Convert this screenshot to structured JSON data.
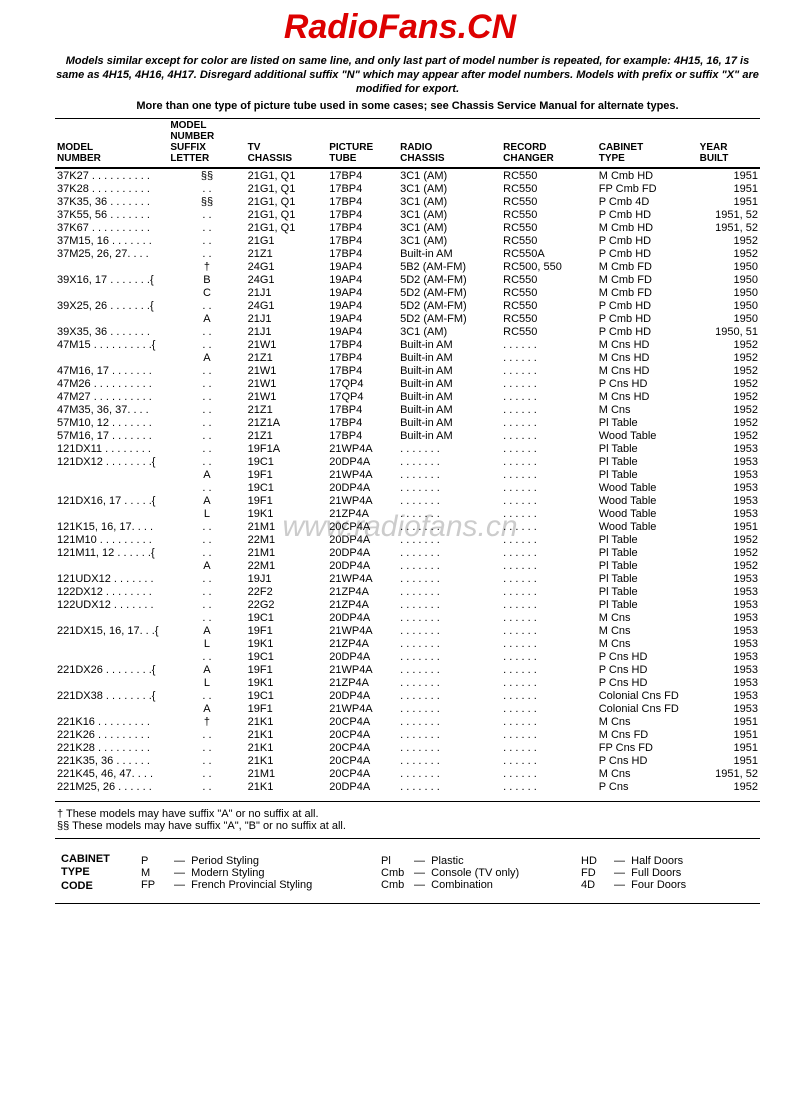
{
  "watermark": {
    "top": "RadioFans.CN",
    "mid": "www.radiofans.cn"
  },
  "intro": "Models similar except for color are listed on same line, and only last part of model number is repeated, for example: 4H15, 16, 17 is same as 4H15, 4H16, 4H17. Disregard additional suffix \"N\" which may appear after model numbers. Models with prefix or suffix \"X\" are modified for export.",
  "intro2": "More than one type of picture tube used in some cases; see Chassis Service Manual for alternate types.",
  "headers": [
    "MODEL\nNUMBER",
    "MODEL NUMBER\nSUFFIX LETTER",
    "TV\nCHASSIS",
    "PICTURE\nTUBE",
    "RADIO\nCHASSIS",
    "RECORD\nCHANGER",
    "CABINET\nTYPE",
    "YEAR\nBUILT"
  ],
  "rows": [
    [
      "37K27 . . . . . . . . . .",
      "§§",
      "21G1, Q1",
      "17BP4",
      "3C1 (AM)",
      "RC550",
      "M Cmb HD",
      "1951",
      "sect"
    ],
    [
      "37K28 . . . . . . . . . .",
      ". .",
      "21G1, Q1",
      "17BP4",
      "3C1 (AM)",
      "RC550",
      "FP Cmb FD",
      "1951",
      ""
    ],
    [
      "37K35, 36 . . . . . . .",
      "§§",
      "21G1, Q1",
      "17BP4",
      "3C1 (AM)",
      "RC550",
      "P Cmb 4D",
      "1951",
      ""
    ],
    [
      "37K55, 56 . . . . . . .",
      ". .",
      "21G1, Q1",
      "17BP4",
      "3C1 (AM)",
      "RC550",
      "P Cmb HD",
      "1951, 52",
      ""
    ],
    [
      "37K67 . . . . . . . . . .",
      ". .",
      "21G1, Q1",
      "17BP4",
      "3C1 (AM)",
      "RC550",
      "M Cmb HD",
      "1951, 52",
      ""
    ],
    [
      "37M15, 16 . . . . . . .",
      ". .",
      "21G1",
      "17BP4",
      "3C1 (AM)",
      "RC550",
      "P Cmb HD",
      "1952",
      ""
    ],
    [
      "37M25, 26, 27. . . .",
      ". .",
      "21Z1",
      "17BP4",
      "Built-in AM",
      "RC550A",
      "P Cmb HD",
      "1952",
      ""
    ],
    [
      "",
      "†",
      "24G1",
      "19AP4",
      "5B2 (AM-FM)",
      "RC500, 550",
      "M Cmb FD",
      "1950",
      "gap"
    ],
    [
      "39X16, 17 . . . . . . .{",
      "B",
      "24G1",
      "19AP4",
      "5D2 (AM-FM)",
      "RC550",
      "M Cmb FD",
      "1950",
      ""
    ],
    [
      "",
      "C",
      "21J1",
      "19AP4",
      "5D2 (AM-FM)",
      "RC550",
      "M Cmb FD",
      "1950",
      ""
    ],
    [
      "39X25, 26 . . . . . . .{",
      ". .",
      "24G1",
      "19AP4",
      "5D2 (AM-FM)",
      "RC550",
      "P Cmb HD",
      "1950",
      "gap"
    ],
    [
      "",
      "A",
      "21J1",
      "19AP4",
      "5D2 (AM-FM)",
      "RC550",
      "P Cmb HD",
      "1950",
      ""
    ],
    [
      "39X35, 36 . . . . . . .",
      ". .",
      "21J1",
      "19AP4",
      "3C1 (AM)",
      "RC550",
      "P Cmb HD",
      "1950, 51",
      "gap"
    ],
    [
      "47M15 . . . . . . . . . .{",
      ". .",
      "21W1",
      "17BP4",
      "Built-in AM",
      ". . . . . .",
      "M Cns HD",
      "1952",
      "gap"
    ],
    [
      "",
      "A",
      "21Z1",
      "17BP4",
      "Built-in AM",
      ". . . . . .",
      "M Cns HD",
      "1952",
      ""
    ],
    [
      "47M16, 17 . . . . . . .",
      ". .",
      "21W1",
      "17BP4",
      "Built-in AM",
      ". . . . . .",
      "M Cns HD",
      "1952",
      ""
    ],
    [
      "47M26 . . . . . . . . . .",
      ". .",
      "21W1",
      "17QP4",
      "Built-in AM",
      ". . . . . .",
      "P Cns HD",
      "1952",
      ""
    ],
    [
      "47M27 . . . . . . . . . .",
      ". .",
      "21W1",
      "17QP4",
      "Built-in AM",
      ". . . . . .",
      "M Cns HD",
      "1952",
      ""
    ],
    [
      "47M35, 36, 37. . . .",
      ". .",
      "21Z1",
      "17BP4",
      "Built-in AM",
      ". . . . . .",
      "M Cns",
      "1952",
      ""
    ],
    [
      "57M10, 12 . . . . . . .",
      ". .",
      "21Z1A",
      "17BP4",
      "Built-in AM",
      ". . . . . .",
      "Pl Table",
      "1952",
      "gap"
    ],
    [
      "57M16, 17 . . . . . . .",
      ". .",
      "21Z1",
      "17BP4",
      "Built-in AM",
      ". . . . . .",
      "Wood Table",
      "1952",
      ""
    ],
    [
      "121DX11 . . . . . . . .",
      ". .",
      "19F1A",
      "21WP4A",
      ". . . . . . .",
      ". . . . . .",
      "Pl Table",
      "1953",
      "gap"
    ],
    [
      "121DX12 . . . . . . . .{",
      ". .",
      "19C1",
      "20DP4A",
      ". . . . . . .",
      ". . . . . .",
      "Pl Table",
      "1953",
      ""
    ],
    [
      "",
      "A",
      "19F1",
      "21WP4A",
      ". . . . . . .",
      ". . . . . .",
      "Pl Table",
      "1953",
      ""
    ],
    [
      "",
      ". .",
      "19C1",
      "20DP4A",
      ". . . . . . .",
      ". . . . . .",
      "Wood Table",
      "1953",
      "gap"
    ],
    [
      "121DX16, 17 . . . . .{",
      "A",
      "19F1",
      "21WP4A",
      ". . . . . . .",
      ". . . . . .",
      "Wood Table",
      "1953",
      ""
    ],
    [
      "",
      "L",
      "19K1",
      "21ZP4A",
      ". . . . . . .",
      ". . . . . .",
      "Wood Table",
      "1953",
      ""
    ],
    [
      "121K15, 16, 17. . . .",
      ". .",
      "21M1",
      "20CP4A",
      ". . . . . . .",
      ". . . . . .",
      "Wood Table",
      "1951",
      ""
    ],
    [
      "121M10 . . . . . . . . .",
      ". .",
      "22M1",
      "20DP4A",
      ". . . . . . .",
      ". . . . . .",
      "Pl Table",
      "1952",
      ""
    ],
    [
      "121M11, 12 . . . . . .{",
      ". .",
      "21M1",
      "20DP4A",
      ". . . . . . .",
      ". . . . . .",
      "Pl Table",
      "1952",
      "gap"
    ],
    [
      "",
      "A",
      "22M1",
      "20DP4A",
      ". . . . . . .",
      ". . . . . .",
      "Pl Table",
      "1952",
      ""
    ],
    [
      "121UDX12 . . . . . . .",
      ". .",
      "19J1",
      "21WP4A",
      ". . . . . . .",
      ". . . . . .",
      "Pl Table",
      "1953",
      ""
    ],
    [
      "122DX12 . . . . . . . .",
      ". .",
      "22F2",
      "21ZP4A",
      ". . . . . . .",
      ". . . . . .",
      "Pl Table",
      "1953",
      ""
    ],
    [
      "122UDX12 . . . . . . .",
      ". .",
      "22G2",
      "21ZP4A",
      ". . . . . . .",
      ". . . . . .",
      "Pl Table",
      "1953",
      ""
    ],
    [
      "",
      ". .",
      "19C1",
      "20DP4A",
      ". . . . . . .",
      ". . . . . .",
      "M Cns",
      "1953",
      "gap"
    ],
    [
      "221DX15, 16, 17. . .{",
      "A",
      "19F1",
      "21WP4A",
      ". . . . . . .",
      ". . . . . .",
      "M Cns",
      "1953",
      ""
    ],
    [
      "",
      "L",
      "19K1",
      "21ZP4A",
      ". . . . . . .",
      ". . . . . .",
      "M Cns",
      "1953",
      ""
    ],
    [
      "",
      ". .",
      "19C1",
      "20DP4A",
      ". . . . . . .",
      ". . . . . .",
      "P Cns HD",
      "1953",
      "gap"
    ],
    [
      "221DX26 . . . . . . . .{",
      "A",
      "19F1",
      "21WP4A",
      ". . . . . . .",
      ". . . . . .",
      "P Cns HD",
      "1953",
      ""
    ],
    [
      "",
      "L",
      "19K1",
      "21ZP4A",
      ". . . . . . .",
      ". . . . . .",
      "P Cns HD",
      "1953",
      ""
    ],
    [
      "221DX38 . . . . . . . .{",
      ". .",
      "19C1",
      "20DP4A",
      ". . . . . . .",
      ". . . . . .",
      "Colonial Cns FD",
      "1953",
      "gap"
    ],
    [
      "",
      "A",
      "19F1",
      "21WP4A",
      ". . . . . . .",
      ". . . . . .",
      "Colonial Cns FD",
      "1953",
      ""
    ],
    [
      "221K16 . . . . . . . . .",
      "†",
      "21K1",
      "20CP4A",
      ". . . . . . .",
      ". . . . . .",
      "M Cns",
      "1951",
      ""
    ],
    [
      "221K26 . . . . . . . . .",
      ". .",
      "21K1",
      "20CP4A",
      ". . . . . . .",
      ". . . . . .",
      "M Cns FD",
      "1951",
      ""
    ],
    [
      "221K28 . . . . . . . . .",
      ". .",
      "21K1",
      "20CP4A",
      ". . . . . . .",
      ". . . . . .",
      "FP Cns FD",
      "1951",
      ""
    ],
    [
      "221K35, 36 . . . . . .",
      ". .",
      "21K1",
      "20CP4A",
      ". . . . . . .",
      ". . . . . .",
      "P Cns HD",
      "1951",
      ""
    ],
    [
      "221K45, 46, 47. . . .",
      ". .",
      "21M1",
      "20CP4A",
      ". . . . . . .",
      ". . . . . .",
      "M Cns",
      "1951, 52",
      ""
    ],
    [
      "221M25, 26 . . . . . .",
      ". .",
      "21K1",
      "20DP4A",
      ". . . . . . .",
      ". . . . . .",
      "P Cns",
      "1952",
      ""
    ]
  ],
  "footnotes": [
    "† These models may have suffix \"A\" or no suffix at all.",
    "§§ These models may have suffix \"A\", \"B\" or no suffix at all."
  ],
  "legend": {
    "title": "CABINET\nTYPE\nCODE",
    "col1": [
      [
        "P",
        "Period Styling"
      ],
      [
        "M",
        "Modern Styling"
      ],
      [
        "FP",
        "French Provincial Styling"
      ]
    ],
    "col2": [
      [
        "Pl",
        "Plastic"
      ],
      [
        "Cmb",
        "Console (TV only)"
      ],
      [
        "Cmb",
        "Combination"
      ]
    ],
    "col3": [
      [
        "HD",
        "Half Doors"
      ],
      [
        "FD",
        "Full Doors"
      ],
      [
        "4D",
        "Four Doors"
      ]
    ]
  }
}
